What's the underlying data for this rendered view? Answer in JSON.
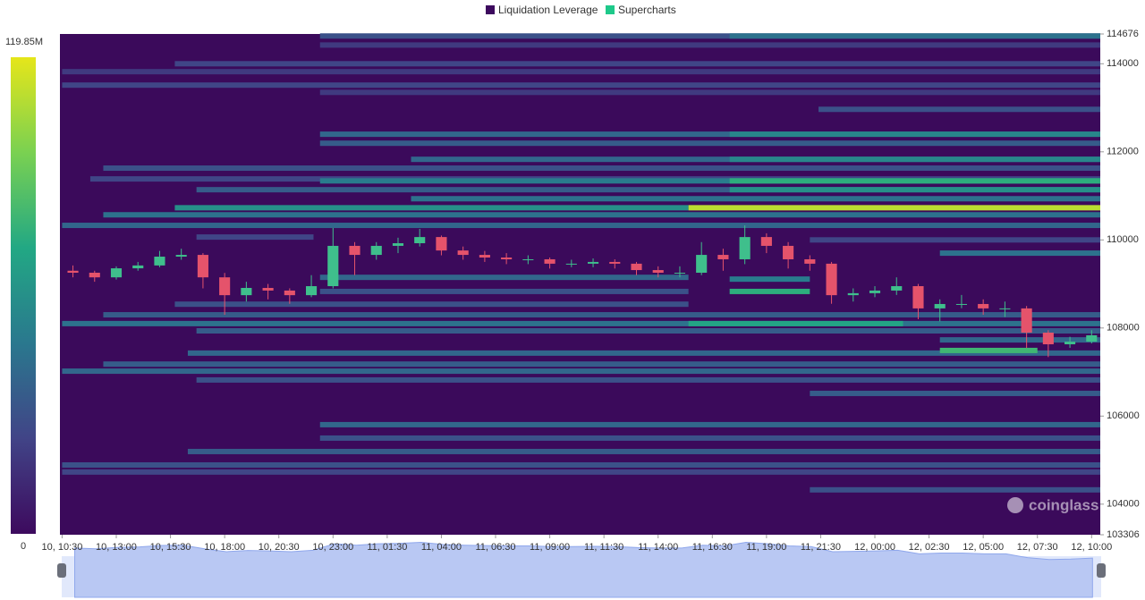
{
  "chart_data": {
    "type": "heatmap",
    "legend": [
      {
        "name": "Liquidation Leverage",
        "color": "#3d0a5e"
      },
      {
        "name": "Supercharts",
        "color": "#1ec98a"
      }
    ],
    "watermark": "coinglass",
    "colorscale": [
      "#3d0a5e",
      "#414487",
      "#2a788e",
      "#22a884",
      "#7ad151",
      "#e6e61a"
    ],
    "colorbar_range": [
      0,
      {
        "value": 119.85,
        "label": "119.85M"
      }
    ],
    "xlim": [
      -0.1,
      47.9
    ],
    "xticks": [
      {
        "value": 0,
        "label": "10, 10:30"
      },
      {
        "value": 2.5,
        "label": "10, 13:00"
      },
      {
        "value": 5,
        "label": "10, 15:30"
      },
      {
        "value": 7.5,
        "label": "10, 18:00"
      },
      {
        "value": 10,
        "label": "10, 20:30"
      },
      {
        "value": 12.5,
        "label": "10, 23:00"
      },
      {
        "value": 15,
        "label": "11, 01:30"
      },
      {
        "value": 17.5,
        "label": "11, 04:00"
      },
      {
        "value": 20,
        "label": "11, 06:30"
      },
      {
        "value": 22.5,
        "label": "11, 09:00"
      },
      {
        "value": 25,
        "label": "11, 11:30"
      },
      {
        "value": 27.5,
        "label": "11, 14:00"
      },
      {
        "value": 30,
        "label": "11, 16:30"
      },
      {
        "value": 32.5,
        "label": "11, 19:00"
      },
      {
        "value": 35,
        "label": "11, 21:30"
      },
      {
        "value": 37.5,
        "label": "12, 00:00"
      },
      {
        "value": 40,
        "label": "12, 02:30"
      },
      {
        "value": 42.5,
        "label": "12, 05:00"
      },
      {
        "value": 45,
        "label": "12, 07:30"
      },
      {
        "value": 47.5,
        "label": "12, 10:00"
      }
    ],
    "ylim": [
      103306,
      114676
    ],
    "yticks": [
      103306,
      104000,
      106000,
      108000,
      110000,
      112000,
      114000,
      114676
    ],
    "bands": [
      {
        "price": 114630,
        "start": 11.9,
        "end": 47.9,
        "value": 30
      },
      {
        "price": 114630,
        "start": 30.8,
        "end": 47.9,
        "value": 45
      },
      {
        "price": 114425,
        "start": 11.9,
        "end": 47.9,
        "value": 20
      },
      {
        "price": 114000,
        "start": 5.2,
        "end": 47.9,
        "value": 25
      },
      {
        "price": 113820,
        "start": 0,
        "end": 47.9,
        "value": 20
      },
      {
        "price": 113515,
        "start": 0,
        "end": 47.9,
        "value": 25
      },
      {
        "price": 113350,
        "start": 11.9,
        "end": 47.9,
        "value": 20
      },
      {
        "price": 112965,
        "start": 34.9,
        "end": 47.9,
        "value": 30
      },
      {
        "price": 112400,
        "start": 11.9,
        "end": 47.9,
        "value": 40
      },
      {
        "price": 112400,
        "start": 30.8,
        "end": 47.9,
        "value": 55
      },
      {
        "price": 112195,
        "start": 11.9,
        "end": 47.9,
        "value": 35
      },
      {
        "price": 111830,
        "start": 16.1,
        "end": 47.9,
        "value": 40
      },
      {
        "price": 111830,
        "start": 30.8,
        "end": 47.9,
        "value": 55
      },
      {
        "price": 111630,
        "start": 1.9,
        "end": 47.9,
        "value": 30
      },
      {
        "price": 111385,
        "start": 1.3,
        "end": 47.9,
        "value": 25
      },
      {
        "price": 111340,
        "start": 11.9,
        "end": 47.9,
        "value": 50
      },
      {
        "price": 111340,
        "start": 30.8,
        "end": 47.9,
        "value": 75
      },
      {
        "price": 111140,
        "start": 6.2,
        "end": 47.9,
        "value": 35
      },
      {
        "price": 111140,
        "start": 30.8,
        "end": 47.9,
        "value": 60
      },
      {
        "price": 110935,
        "start": 16.1,
        "end": 47.9,
        "value": 45
      },
      {
        "price": 110730,
        "start": 5.2,
        "end": 28.9,
        "value": 60
      },
      {
        "price": 110730,
        "start": 28.9,
        "end": 47.9,
        "value": 110
      },
      {
        "price": 110570,
        "start": 1.9,
        "end": 47.9,
        "value": 45
      },
      {
        "price": 110330,
        "start": 0,
        "end": 47.9,
        "value": 40
      },
      {
        "price": 110065,
        "start": 6.2,
        "end": 11.6,
        "value": 25
      },
      {
        "price": 110000,
        "start": 34.5,
        "end": 47.9,
        "value": 25
      },
      {
        "price": 109700,
        "start": 40.5,
        "end": 47.9,
        "value": 45
      },
      {
        "price": 109150,
        "start": 11.9,
        "end": 28.9,
        "value": 40
      },
      {
        "price": 109110,
        "start": 30.8,
        "end": 34.5,
        "value": 50
      },
      {
        "price": 108830,
        "start": 11.9,
        "end": 28.9,
        "value": 30
      },
      {
        "price": 108830,
        "start": 30.8,
        "end": 34.5,
        "value": 75
      },
      {
        "price": 108540,
        "start": 5.2,
        "end": 28.9,
        "value": 30
      },
      {
        "price": 108300,
        "start": 1.9,
        "end": 47.9,
        "value": 35
      },
      {
        "price": 108100,
        "start": 0,
        "end": 47.9,
        "value": 45
      },
      {
        "price": 108100,
        "start": 28.9,
        "end": 38.8,
        "value": 70
      },
      {
        "price": 107935,
        "start": 6.2,
        "end": 47.9,
        "value": 35
      },
      {
        "price": 107730,
        "start": 40.5,
        "end": 47.9,
        "value": 40
      },
      {
        "price": 107430,
        "start": 5.8,
        "end": 47.9,
        "value": 40
      },
      {
        "price": 107490,
        "start": 40.5,
        "end": 45.0,
        "value": 80
      },
      {
        "price": 107180,
        "start": 1.9,
        "end": 47.9,
        "value": 35
      },
      {
        "price": 107020,
        "start": 0,
        "end": 47.9,
        "value": 40
      },
      {
        "price": 106820,
        "start": 6.2,
        "end": 47.9,
        "value": 30
      },
      {
        "price": 106515,
        "start": 34.5,
        "end": 47.9,
        "value": 35
      },
      {
        "price": 105805,
        "start": 11.9,
        "end": 47.9,
        "value": 40
      },
      {
        "price": 105500,
        "start": 11.9,
        "end": 47.9,
        "value": 30
      },
      {
        "price": 105195,
        "start": 5.8,
        "end": 47.9,
        "value": 35
      },
      {
        "price": 104890,
        "start": 0,
        "end": 47.9,
        "value": 30
      },
      {
        "price": 104730,
        "start": 0,
        "end": 47.9,
        "value": 25
      },
      {
        "price": 104325,
        "start": 34.5,
        "end": 47.9,
        "value": 30
      }
    ],
    "candles": {
      "up_color": "#3fbf8c",
      "down_color": "#e5536b",
      "x": [
        0.5,
        1.5,
        2.5,
        3.5,
        4.5,
        5.5,
        6.5,
        7.5,
        8.5,
        9.5,
        10.5,
        11.5,
        12.5,
        13.5,
        14.5,
        15.5,
        16.5,
        17.5,
        18.5,
        19.5,
        20.5,
        21.5,
        22.5,
        23.5,
        24.5,
        25.5,
        26.5,
        27.5,
        28.5,
        29.5,
        30.5,
        31.5,
        32.5,
        33.5,
        34.5,
        35.5,
        36.5,
        37.5,
        38.5,
        39.5,
        40.5,
        41.5,
        42.5,
        43.5,
        44.5,
        45.5,
        46.5,
        47.5
      ],
      "open": [
        109300,
        109255,
        109150,
        109355,
        109420,
        109620,
        109660,
        109150,
        108745,
        108910,
        108850,
        108745,
        108950,
        109865,
        109660,
        109865,
        109925,
        110065,
        109760,
        109660,
        109600,
        109560,
        109560,
        109460,
        109460,
        109500,
        109460,
        109315,
        109255,
        109255,
        109660,
        109560,
        110065,
        109865,
        109560,
        109460,
        108745,
        108790,
        108850,
        108950,
        108445,
        108545,
        108545,
        108445,
        108445,
        107895,
        107630,
        107690
      ],
      "high": [
        109420,
        109300,
        109400,
        109500,
        109750,
        109800,
        109700,
        109250,
        109050,
        109000,
        108900,
        109200,
        110270,
        109950,
        109950,
        110050,
        110250,
        110100,
        109850,
        109750,
        109700,
        109650,
        109600,
        109550,
        109580,
        109560,
        109500,
        109400,
        109400,
        109950,
        109800,
        110330,
        110150,
        109950,
        109650,
        109500,
        108900,
        108950,
        109150,
        109000,
        108650,
        108750,
        108650,
        108600,
        108500,
        107950,
        107800,
        107950
      ],
      "low": [
        109150,
        109050,
        109100,
        109300,
        109380,
        109550,
        108900,
        108300,
        108600,
        108650,
        108550,
        108700,
        108900,
        109200,
        109550,
        109700,
        109850,
        109650,
        109550,
        109500,
        109450,
        109450,
        109350,
        109380,
        109380,
        109350,
        109200,
        109150,
        109150,
        109200,
        109300,
        109450,
        109700,
        109350,
        109300,
        108550,
        108600,
        108700,
        108750,
        108200,
        108150,
        108450,
        108300,
        108250,
        107550,
        107340,
        107550,
        107650
      ],
      "close": [
        109255,
        109150,
        109355,
        109420,
        109620,
        109660,
        109150,
        108745,
        108910,
        108850,
        108745,
        108950,
        109865,
        109660,
        109865,
        109925,
        110065,
        109760,
        109660,
        109600,
        109560,
        109560,
        109460,
        109460,
        109500,
        109460,
        109315,
        109255,
        109255,
        109660,
        109560,
        110065,
        109865,
        109560,
        109460,
        108745,
        108790,
        108850,
        108950,
        108445,
        108545,
        108545,
        108445,
        108445,
        107895,
        107630,
        107690,
        107835
      ]
    }
  }
}
